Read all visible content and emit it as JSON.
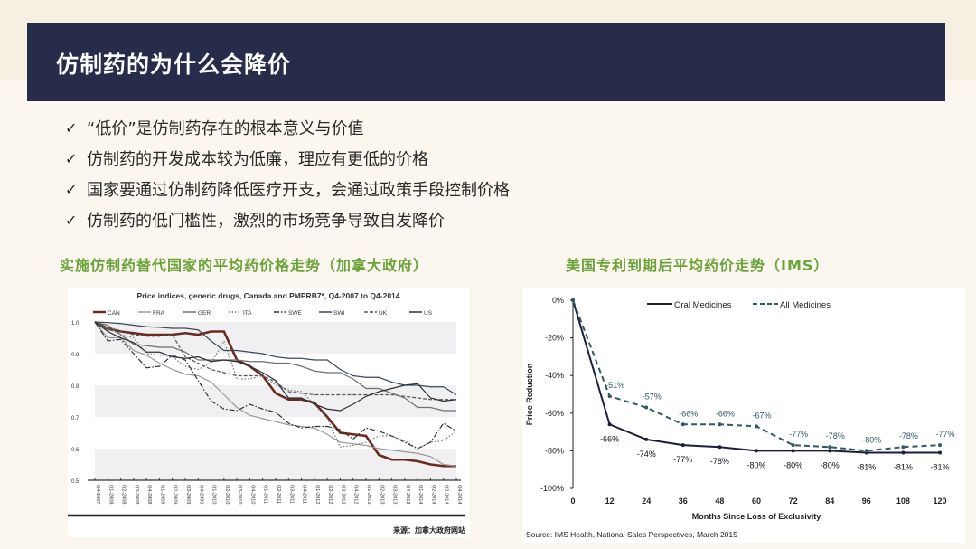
{
  "header": {
    "title": "仿制药的为什么会降价"
  },
  "bullets": [
    {
      "icon": "check-icon",
      "text": "“低价”是仿制药存在的根本意义与价值"
    },
    {
      "icon": "check-icon",
      "text": "仿制药的开发成本较为低廉，理应有更低的价格"
    },
    {
      "icon": "check-icon",
      "text": "国家要通过仿制药降低医疗开支，会通过政策手段控制价格"
    },
    {
      "icon": "check-icon",
      "text": "仿制药的低门槛性，激烈的市场竞争导致自发降价"
    }
  ],
  "left_caption": "实施仿制药替代国家的平均药价格走势（加拿大政府）",
  "right_caption": "美国专利到期后平均药价走势（IMS）",
  "chart_data": [
    {
      "type": "line",
      "title": "Price indices, generic drugs, Canada and PMPRB7*, Q4-2007 to Q4-2014",
      "source": "来源：加拿大政府网站",
      "ylim": [
        0.5,
        1.0
      ],
      "yticks": [
        "0.5",
        "0.6",
        "0.7",
        "0.8",
        "0.9",
        "1.0"
      ],
      "categories": [
        "Q4-2007",
        "Q1-2008",
        "Q2-2008",
        "Q3-2008",
        "Q4-2008",
        "Q1-2009",
        "Q2-2009",
        "Q3-2009",
        "Q4-2009",
        "Q1-2010",
        "Q2-2010",
        "Q3-2010",
        "Q4-2010",
        "Q1-2011",
        "Q2-2011",
        "Q3-2011",
        "Q4-2011",
        "Q1-2012",
        "Q2-2012",
        "Q3-2012",
        "Q4-2012",
        "Q1-2013",
        "Q2-2013",
        "Q3-2013",
        "Q4-2013",
        "Q1-2014",
        "Q2-2014",
        "Q3-2014",
        "Q4-2014"
      ],
      "legend": "top",
      "series": [
        {
          "name": "CAN",
          "color": "#6b2a1e",
          "style": "thick",
          "values": [
            1.0,
            0.98,
            0.97,
            0.965,
            0.96,
            0.96,
            0.96,
            0.965,
            0.96,
            0.97,
            0.97,
            0.88,
            0.86,
            0.83,
            0.775,
            0.755,
            0.755,
            0.745,
            0.7,
            0.65,
            0.645,
            0.64,
            0.58,
            0.565,
            0.565,
            0.56,
            0.55,
            0.545,
            0.545
          ]
        },
        {
          "name": "FRA",
          "color": "#9a9a9a",
          "style": "solid",
          "values": [
            1.0,
            0.95,
            0.95,
            0.91,
            0.895,
            0.87,
            0.85,
            0.835,
            0.83,
            0.81,
            0.77,
            0.73,
            0.705,
            0.695,
            0.685,
            0.675,
            0.67,
            0.665,
            0.645,
            0.62,
            0.615,
            0.61,
            0.6,
            0.595,
            0.59,
            0.585,
            0.575,
            0.55,
            0.545
          ]
        },
        {
          "name": "GER",
          "color": "#707070",
          "style": "solid",
          "values": [
            1.0,
            0.99,
            0.96,
            0.93,
            0.925,
            0.92,
            0.92,
            0.905,
            0.88,
            0.88,
            0.88,
            0.88,
            0.875,
            0.875,
            0.87,
            0.87,
            0.86,
            0.845,
            0.84,
            0.84,
            0.82,
            0.79,
            0.79,
            0.775,
            0.76,
            0.73,
            0.73,
            0.72,
            0.72
          ]
        },
        {
          "name": "ITA",
          "color": "#777777",
          "style": "dot",
          "values": [
            1.0,
            0.98,
            0.96,
            0.95,
            0.9,
            0.895,
            0.89,
            0.86,
            0.85,
            0.87,
            0.94,
            0.82,
            0.82,
            0.83,
            0.8,
            0.785,
            0.78,
            0.74,
            0.695,
            0.605,
            0.61,
            0.62,
            0.64,
            0.64,
            0.625,
            0.6,
            0.62,
            0.625,
            0.655
          ]
        },
        {
          "name": "SWE",
          "color": "#333333",
          "style": "dashdot",
          "values": [
            1.0,
            0.94,
            0.945,
            0.9,
            0.855,
            0.86,
            0.895,
            0.88,
            0.815,
            0.75,
            0.725,
            0.72,
            0.74,
            0.725,
            0.715,
            0.68,
            0.665,
            0.67,
            0.67,
            0.66,
            0.63,
            0.665,
            0.655,
            0.64,
            0.62,
            0.6,
            0.62,
            0.68,
            0.655
          ]
        },
        {
          "name": "SWI",
          "color": "#3a4a55",
          "style": "solid",
          "values": [
            1.0,
            0.998,
            0.995,
            0.99,
            0.985,
            0.983,
            0.98,
            0.98,
            0.975,
            0.94,
            0.91,
            0.91,
            0.905,
            0.9,
            0.89,
            0.885,
            0.885,
            0.88,
            0.88,
            0.85,
            0.83,
            0.825,
            0.825,
            0.81,
            0.8,
            0.8,
            0.795,
            0.795,
            0.77
          ]
        },
        {
          "name": "UK",
          "color": "#555555",
          "style": "dash",
          "values": [
            1.0,
            0.975,
            0.97,
            0.96,
            0.955,
            0.955,
            0.96,
            0.89,
            0.87,
            0.85,
            0.84,
            0.83,
            0.83,
            0.83,
            0.81,
            0.78,
            0.775,
            0.77,
            0.77,
            0.77,
            0.77,
            0.77,
            0.77,
            0.77,
            0.765,
            0.76,
            0.755,
            0.755,
            0.755
          ]
        },
        {
          "name": "US",
          "color": "#2b3038",
          "style": "solid",
          "values": [
            1.0,
            0.97,
            0.95,
            0.935,
            0.905,
            0.905,
            0.89,
            0.885,
            0.89,
            0.875,
            0.88,
            0.875,
            0.86,
            0.84,
            0.815,
            0.76,
            0.76,
            0.74,
            0.725,
            0.72,
            0.74,
            0.765,
            0.78,
            0.79,
            0.8,
            0.805,
            0.76,
            0.75,
            0.755
          ]
        }
      ]
    },
    {
      "type": "line",
      "title": "",
      "xlabel": "Months Since Loss of Exclusivity",
      "ylabel": "Price Reduction",
      "source": "Source: IMS Health, National Sales Perspectives, March 2015",
      "ylim": [
        -100,
        0
      ],
      "yticks": [
        "0%",
        "-20%",
        "-40%",
        "-60%",
        "-80%",
        "-100%"
      ],
      "x": [
        0,
        12,
        24,
        36,
        48,
        60,
        72,
        84,
        96,
        108,
        120
      ],
      "legend": "top",
      "series": [
        {
          "name": "Oral Medicines",
          "color": "#1c1f3a",
          "style": "solid",
          "values": [
            0,
            -66,
            -74,
            -77,
            -78,
            -80,
            -80,
            -80,
            -81,
            -81,
            -81
          ],
          "labels": [
            "",
            "-66%",
            "-74%",
            "-77%",
            "-78%",
            "-80%",
            "-80%",
            "-80%",
            "-81%",
            "-81%",
            "-81%"
          ]
        },
        {
          "name": "All Medicines",
          "color": "#2f5a63",
          "style": "dash",
          "values": [
            0,
            -51,
            -57,
            -66,
            -66,
            -67,
            -77,
            -78,
            -80,
            -78,
            -77
          ],
          "labels": [
            "",
            "-51%",
            "-57%",
            "-66%",
            "-66%",
            "-67%",
            "-77%",
            "-78%",
            "-80%",
            "-78%",
            "-77%"
          ]
        }
      ]
    }
  ]
}
